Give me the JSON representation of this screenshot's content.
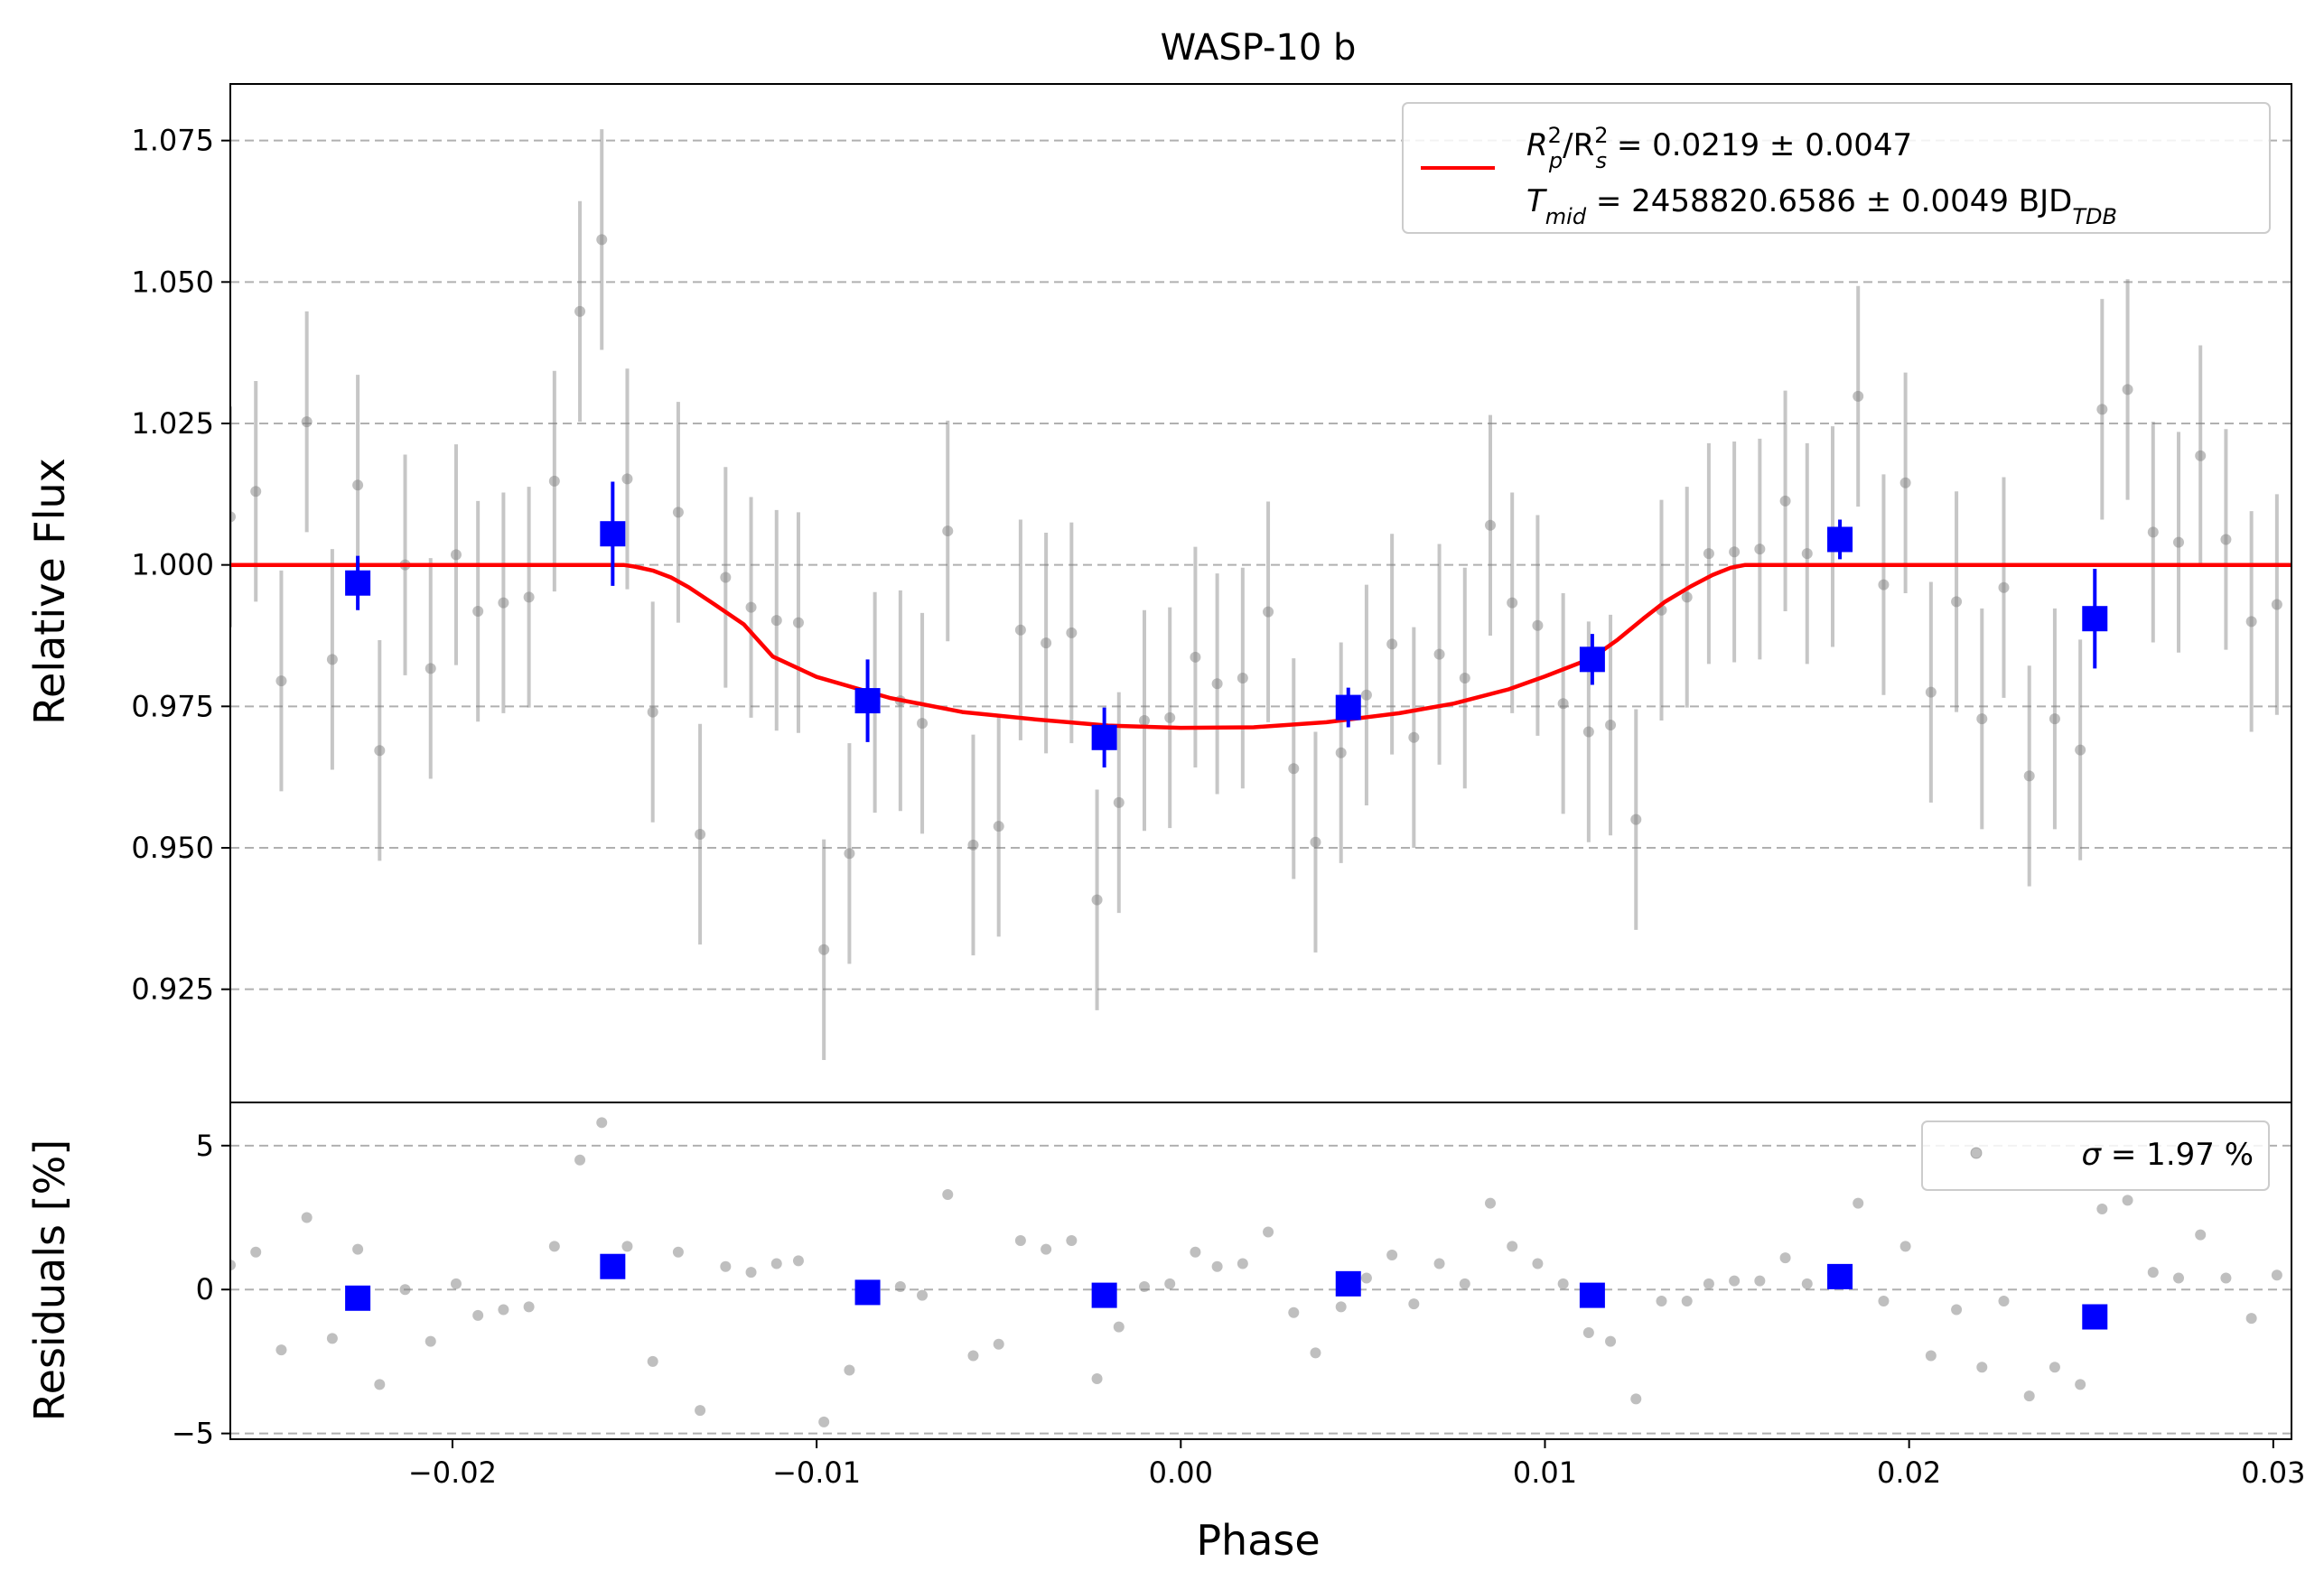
{
  "chart_data": [
    {
      "type": "scatter",
      "panel": "main",
      "title": "WASP-10 b",
      "xlabel": "",
      "ylabel": "Relative Flux",
      "xlim": [
        -0.0261,
        0.0305
      ],
      "ylim": [
        0.905,
        1.085
      ],
      "grid": "y-dashed",
      "legend_position": "top-right",
      "yticks": [
        "0.925",
        "0.950",
        "0.975",
        "1.000",
        "1.025",
        "1.050",
        "1.075"
      ],
      "legend": {
        "line1": {
          "label": "R",
          "sub1": "p",
          "sup1": "2",
          "mid": "/R",
          "sub2": "s",
          "sup2": "2",
          "rest": " = 0.0219 ± 0.0047"
        },
        "line2": {
          "label": "T",
          "sub": "mid",
          "rest": " = 2458820.6586 ± 0.0049 BJD",
          "sub2": "TDB"
        }
      },
      "series": [
        {
          "name": "raw",
          "color": "#808080",
          "error": 0.0195,
          "x": [
            -0.0261,
            -0.0254,
            -0.0247,
            -0.024,
            -0.0233,
            -0.0226,
            -0.022,
            -0.0213,
            -0.0206,
            -0.0199,
            -0.0193,
            -0.0186,
            -0.0179,
            -0.0172,
            -0.0165,
            -0.0159,
            -0.0152,
            -0.0145,
            -0.0138,
            -0.0132,
            -0.0125,
            -0.0118,
            -0.0111,
            -0.0105,
            -0.0098,
            -0.0091,
            -0.0084,
            -0.0077,
            -0.0071,
            -0.0064,
            -0.0057,
            -0.005,
            -0.0044,
            -0.0037,
            -0.003,
            -0.0023,
            -0.0017,
            -0.001,
            -0.0003,
            0.0004,
            0.001,
            0.0017,
            0.0024,
            0.0031,
            0.0037,
            0.0044,
            0.0051,
            0.0058,
            0.0064,
            0.0071,
            0.0078,
            0.0085,
            0.0091,
            0.0098,
            0.0105,
            0.0112,
            0.0118,
            0.0125,
            0.0132,
            0.0139,
            0.0145,
            0.0152,
            0.0159,
            0.0166,
            0.0172,
            0.0179,
            0.0186,
            0.0193,
            0.0199,
            0.0206,
            0.0213,
            0.022,
            0.0226,
            0.0233,
            0.024,
            0.0247,
            0.0253,
            0.026,
            0.0267,
            0.0274,
            0.028,
            0.0287,
            0.0294,
            0.0301
          ],
          "y": [
            1.0085,
            1.013,
            0.9795,
            1.0253,
            0.9833,
            1.0141,
            0.9672,
            1.0,
            0.9817,
            1.0018,
            0.9918,
            0.9933,
            0.9943,
            1.0148,
            1.0448,
            1.0575,
            1.0152,
            0.974,
            1.0093,
            0.9524,
            0.9978,
            0.9925,
            0.9902,
            0.9898,
            0.932,
            0.949,
            0.9757,
            0.976,
            0.972,
            1.006,
            0.9505,
            0.9538,
            0.9885,
            0.9862,
            0.988,
            0.9408,
            0.958,
            0.9725,
            0.973,
            0.9837,
            0.979,
            0.98,
            0.9917,
            0.964,
            0.951,
            0.9668,
            0.977,
            0.986,
            0.9695,
            0.9842,
            0.98,
            1.007,
            0.9933,
            0.9893,
            0.9755,
            0.9705,
            0.9717,
            0.955,
            0.992,
            0.9943,
            1.002,
            1.0023,
            1.0028,
            1.0113,
            1.002,
            1.005,
            1.0298,
            0.9965,
            1.0145,
            0.9775,
            0.9935,
            0.9728,
            0.996,
            0.9627,
            0.9728,
            0.9673,
            1.0275,
            1.031,
            1.0058,
            1.004,
            1.0193,
            1.0045,
            0.99,
            0.993
          ]
        },
        {
          "name": "binned",
          "color": "#0000ff",
          "x": [
            -0.0226,
            -0.0156,
            -0.0086,
            -0.0021,
            0.0046,
            0.0113,
            0.0181,
            0.0251
          ],
          "y": [
            0.9968,
            1.0055,
            0.976,
            0.9695,
            0.9748,
            0.9833,
            1.0045,
            0.9905
          ],
          "error": [
            0.0048,
            0.0092,
            0.0073,
            0.0053,
            0.0035,
            0.0045,
            0.0035,
            0.0088
          ]
        },
        {
          "name": "model",
          "color": "#ff0000",
          "x": [
            -0.0261,
            -0.0153,
            -0.015,
            -0.0145,
            -0.014,
            -0.0135,
            -0.0128,
            -0.012,
            -0.0112,
            -0.01,
            -0.008,
            -0.006,
            -0.004,
            -0.002,
            0.0,
            0.002,
            0.004,
            0.006,
            0.0075,
            0.009,
            0.01,
            0.011,
            0.0115,
            0.012,
            0.0127,
            0.0133,
            0.014,
            0.0146,
            0.0151,
            0.0155,
            0.0305
          ],
          "y": [
            1.0,
            1.0,
            0.9997,
            0.999,
            0.9978,
            0.996,
            0.993,
            0.9895,
            0.9838,
            0.9802,
            0.9765,
            0.974,
            0.9727,
            0.9716,
            0.9712,
            0.9713,
            0.9722,
            0.9738,
            0.9755,
            0.978,
            0.9803,
            0.9828,
            0.9845,
            0.9868,
            0.9905,
            0.9935,
            0.9962,
            0.9982,
            0.9995,
            1.0,
            1.0
          ]
        }
      ]
    },
    {
      "type": "scatter",
      "panel": "residuals",
      "xlabel": "Phase",
      "ylabel": "Residuals [%]",
      "xlim": [
        -0.0261,
        0.0305
      ],
      "ylim": [
        -5.2,
        6.5
      ],
      "grid": "y-dashed",
      "legend_position": "top-right",
      "xticks": [
        "−0.02",
        "−0.01",
        "0.00",
        "0.01",
        "0.02",
        "0.03"
      ],
      "xtick_values": [
        -0.02,
        -0.01,
        0.0,
        0.01,
        0.02,
        0.03
      ],
      "yticks": [
        "−5",
        "0",
        "5"
      ],
      "ytick_values": [
        -5,
        0,
        5
      ],
      "legend": {
        "sigma": "σ",
        "rest": " = 1.97 %"
      },
      "series": [
        {
          "name": "residuals",
          "color": "#808080",
          "x": [
            -0.0261,
            -0.0254,
            -0.0247,
            -0.024,
            -0.0233,
            -0.0226,
            -0.022,
            -0.0213,
            -0.0206,
            -0.0199,
            -0.0193,
            -0.0186,
            -0.0179,
            -0.0172,
            -0.0165,
            -0.0159,
            -0.0152,
            -0.0145,
            -0.0138,
            -0.0132,
            -0.0125,
            -0.0118,
            -0.0111,
            -0.0105,
            -0.0098,
            -0.0091,
            -0.0084,
            -0.0077,
            -0.0071,
            -0.0064,
            -0.0057,
            -0.005,
            -0.0044,
            -0.0037,
            -0.003,
            -0.0023,
            -0.0017,
            -0.001,
            -0.0003,
            0.0004,
            0.001,
            0.0017,
            0.0024,
            0.0031,
            0.0037,
            0.0044,
            0.0051,
            0.0058,
            0.0064,
            0.0071,
            0.0078,
            0.0085,
            0.0091,
            0.0098,
            0.0105,
            0.0112,
            0.0118,
            0.0125,
            0.0132,
            0.0139,
            0.0145,
            0.0152,
            0.0159,
            0.0166,
            0.0172,
            0.0179,
            0.0186,
            0.0193,
            0.0199,
            0.0206,
            0.0213,
            0.022,
            0.0226,
            0.0233,
            0.024,
            0.0247,
            0.0253,
            0.026,
            0.0267,
            0.0274,
            0.028,
            0.0287,
            0.0294,
            0.0301
          ],
          "y": [
            0.85,
            1.3,
            -2.1,
            2.5,
            -1.7,
            1.4,
            -3.3,
            0.0,
            -1.8,
            0.2,
            -0.9,
            -0.7,
            -0.6,
            1.5,
            4.5,
            5.8,
            1.5,
            -2.5,
            1.3,
            -4.2,
            0.8,
            0.6,
            0.9,
            1.0,
            -4.6,
            -2.8,
            0.0,
            0.1,
            -0.2,
            3.3,
            -2.3,
            -1.9,
            1.7,
            1.4,
            1.7,
            -3.1,
            -1.3,
            0.1,
            0.2,
            1.3,
            0.8,
            0.9,
            2.0,
            -0.8,
            -2.2,
            -0.6,
            0.4,
            1.2,
            -0.5,
            0.9,
            0.2,
            3.0,
            1.5,
            0.9,
            0.2,
            -1.5,
            -1.8,
            -3.8,
            -0.4,
            -0.4,
            0.2,
            0.3,
            0.3,
            1.1,
            0.2,
            0.5,
            3.0,
            -0.4,
            1.5,
            -2.3,
            -0.7,
            -2.7,
            -0.4,
            -3.7,
            -2.7,
            -3.3,
            2.8,
            3.1,
            0.6,
            0.4,
            1.9,
            0.4,
            -1.0,
            0.5
          ]
        },
        {
          "name": "binned-residuals",
          "color": "#0000ff",
          "x": [
            -0.0226,
            -0.0156,
            -0.0086,
            -0.0021,
            0.0046,
            0.0113,
            0.0181,
            0.0251
          ],
          "y": [
            -0.3,
            0.8,
            -0.1,
            -0.2,
            0.2,
            -0.2,
            0.45,
            -0.95
          ]
        }
      ]
    }
  ]
}
